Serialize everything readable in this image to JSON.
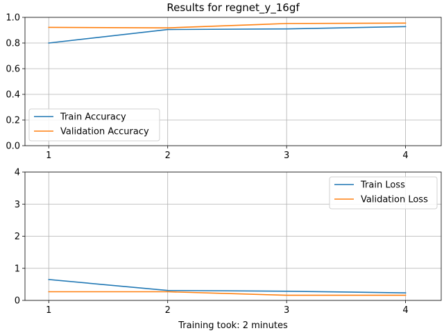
{
  "figure": {
    "title": "Results for regnet_y_16gf",
    "xlabel": "Training took: 2 minutes"
  },
  "chart_data": [
    {
      "type": "line",
      "title": "Results for regnet_y_16gf",
      "xlabel": "",
      "ylabel": "",
      "x": [
        1,
        2,
        3,
        4
      ],
      "xticks": [
        "1",
        "2",
        "3",
        "4"
      ],
      "xlim": [
        0.8,
        4.3
      ],
      "ylim": [
        0.0,
        1.0
      ],
      "yticks": [
        "0.0",
        "0.2",
        "0.4",
        "0.6",
        "0.8",
        "1.0"
      ],
      "grid": true,
      "legend_position": "lower-left",
      "series": [
        {
          "name": "Train Accuracy",
          "color": "#1f77b4",
          "values": [
            0.8,
            0.905,
            0.91,
            0.928
          ]
        },
        {
          "name": "Validation Accuracy",
          "color": "#ff7f0e",
          "values": [
            0.922,
            0.918,
            0.952,
            0.955
          ]
        }
      ]
    },
    {
      "type": "line",
      "title": "",
      "xlabel": "Training took: 2 minutes",
      "ylabel": "",
      "x": [
        1,
        2,
        3,
        4
      ],
      "xticks": [
        "1",
        "2",
        "3",
        "4"
      ],
      "xlim": [
        0.8,
        4.3
      ],
      "ylim": [
        0,
        4
      ],
      "yticks": [
        "0",
        "1",
        "2",
        "3",
        "4"
      ],
      "grid": true,
      "legend_position": "upper-right",
      "series": [
        {
          "name": "Train Loss",
          "color": "#1f77b4",
          "values": [
            0.65,
            0.31,
            0.285,
            0.235
          ]
        },
        {
          "name": "Validation Loss",
          "color": "#ff7f0e",
          "values": [
            0.27,
            0.27,
            0.16,
            0.16
          ]
        }
      ]
    }
  ]
}
